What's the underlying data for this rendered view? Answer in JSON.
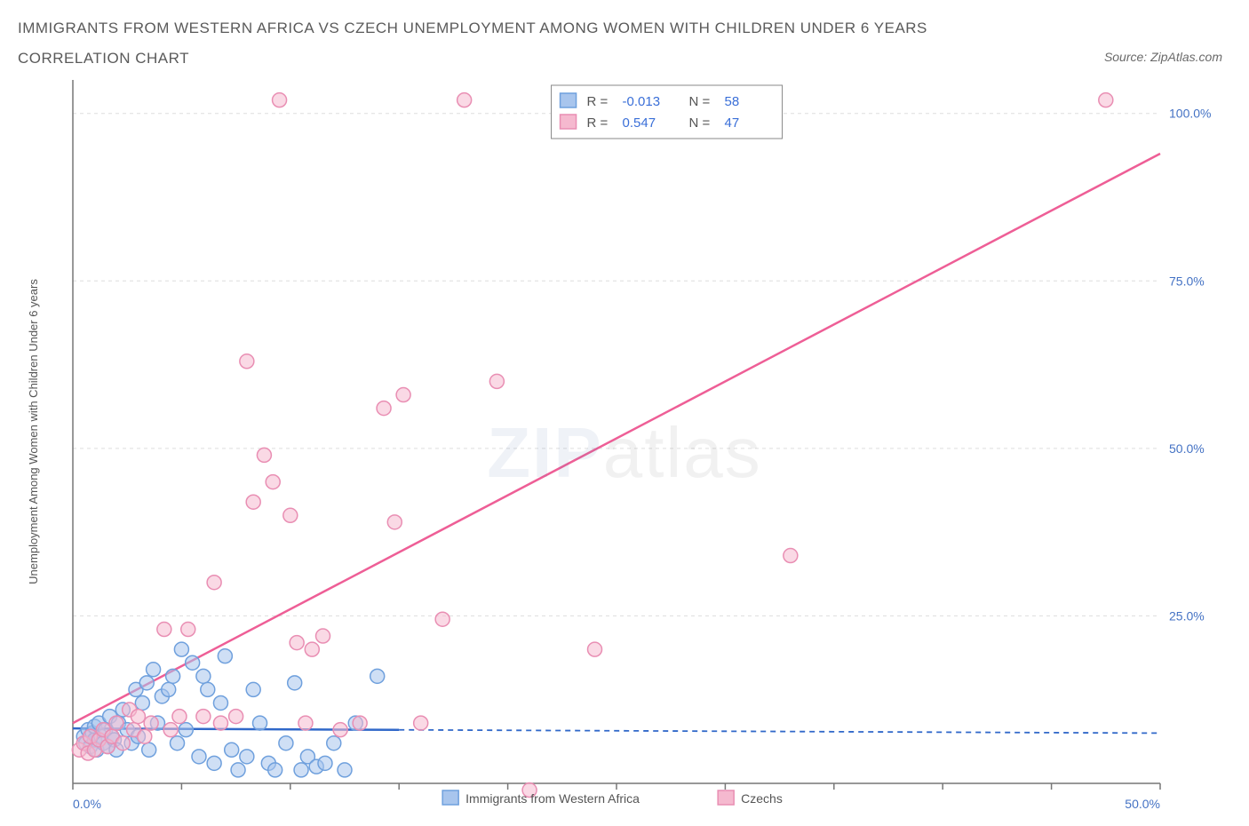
{
  "title_line1": "IMMIGRANTS FROM WESTERN AFRICA VS CZECH UNEMPLOYMENT AMONG WOMEN WITH CHILDREN UNDER 6 YEARS",
  "title_line2": "CORRELATION CHART",
  "source_text": "Source: ZipAtlas.com",
  "watermark_zip": "ZIP",
  "watermark_atlas": "atlas",
  "y_axis_label": "Unemployment Among Women with Children Under 6 years",
  "chart": {
    "type": "scatter",
    "background_color": "#ffffff",
    "grid_color": "#dddddd",
    "axis_color": "#777777",
    "tick_label_color": "#4472c4",
    "tick_fontsize": 14,
    "axis_label_fontsize": 13,
    "axis_label_color": "#555555",
    "xlim": [
      0,
      50
    ],
    "ylim": [
      0,
      105
    ],
    "x_ticks": [
      0,
      5,
      10,
      15,
      20,
      25,
      30,
      35,
      40,
      45,
      50
    ],
    "x_tick_labels": {
      "0": "0.0%",
      "50": "50.0%"
    },
    "y_ticks": [
      25,
      50,
      75,
      100
    ],
    "y_tick_labels": {
      "25": "25.0%",
      "50": "50.0%",
      "75": "75.0%",
      "100": "100.0%"
    },
    "marker_radius": 8,
    "marker_stroke_width": 1.5,
    "trend_line_width": 2.5,
    "series": [
      {
        "name": "Immigrants from Western Africa",
        "fill": "#a8c5ed",
        "stroke": "#6fa0dd",
        "fill_opacity": 0.55,
        "trend_color": "#3068c9",
        "trend_dash_after_x": 15,
        "trend_y_at_0": 8.2,
        "trend_y_at_50": 7.5,
        "points": [
          [
            0.5,
            7
          ],
          [
            0.6,
            6
          ],
          [
            0.7,
            8
          ],
          [
            0.8,
            5.5
          ],
          [
            0.9,
            7.5
          ],
          [
            1.0,
            6.5
          ],
          [
            1.0,
            8.5
          ],
          [
            1.1,
            5
          ],
          [
            1.2,
            9
          ],
          [
            1.3,
            7
          ],
          [
            1.4,
            6
          ],
          [
            1.5,
            8
          ],
          [
            1.6,
            5.5
          ],
          [
            1.7,
            10
          ],
          [
            1.8,
            7
          ],
          [
            1.9,
            6.5
          ],
          [
            2.0,
            5
          ],
          [
            2.1,
            9
          ],
          [
            2.3,
            11
          ],
          [
            2.5,
            8
          ],
          [
            2.7,
            6
          ],
          [
            2.9,
            14
          ],
          [
            3.0,
            7
          ],
          [
            3.2,
            12
          ],
          [
            3.4,
            15
          ],
          [
            3.5,
            5
          ],
          [
            3.7,
            17
          ],
          [
            3.9,
            9
          ],
          [
            4.1,
            13
          ],
          [
            4.4,
            14
          ],
          [
            4.6,
            16
          ],
          [
            4.8,
            6
          ],
          [
            5.0,
            20
          ],
          [
            5.2,
            8
          ],
          [
            5.5,
            18
          ],
          [
            5.8,
            4
          ],
          [
            6.0,
            16
          ],
          [
            6.2,
            14
          ],
          [
            6.5,
            3
          ],
          [
            6.8,
            12
          ],
          [
            7.0,
            19
          ],
          [
            7.3,
            5
          ],
          [
            7.6,
            2
          ],
          [
            8.0,
            4
          ],
          [
            8.3,
            14
          ],
          [
            8.6,
            9
          ],
          [
            9.0,
            3
          ],
          [
            9.3,
            2
          ],
          [
            9.8,
            6
          ],
          [
            10.2,
            15
          ],
          [
            10.5,
            2
          ],
          [
            10.8,
            4
          ],
          [
            11.2,
            2.5
          ],
          [
            11.6,
            3
          ],
          [
            12.0,
            6
          ],
          [
            12.5,
            2
          ],
          [
            13.0,
            9
          ],
          [
            14.0,
            16
          ]
        ]
      },
      {
        "name": "Czechs",
        "fill": "#f5b9cf",
        "stroke": "#e98eb3",
        "fill_opacity": 0.55,
        "trend_color": "#ee5e96",
        "trend_dash_after_x": 50,
        "trend_y_at_0": 9,
        "trend_y_at_50": 94,
        "points": [
          [
            0.3,
            5
          ],
          [
            0.5,
            6
          ],
          [
            0.7,
            4.5
          ],
          [
            0.8,
            7
          ],
          [
            1.0,
            5
          ],
          [
            1.2,
            6.5
          ],
          [
            1.4,
            8
          ],
          [
            1.6,
            5.5
          ],
          [
            1.8,
            7
          ],
          [
            2.0,
            9
          ],
          [
            2.3,
            6
          ],
          [
            2.6,
            11
          ],
          [
            2.8,
            8
          ],
          [
            3.0,
            10
          ],
          [
            3.3,
            7
          ],
          [
            3.6,
            9
          ],
          [
            4.2,
            23
          ],
          [
            4.5,
            8
          ],
          [
            4.9,
            10
          ],
          [
            5.3,
            23
          ],
          [
            6.0,
            10
          ],
          [
            6.5,
            30
          ],
          [
            6.8,
            9
          ],
          [
            7.5,
            10
          ],
          [
            8.0,
            63
          ],
          [
            8.3,
            42
          ],
          [
            8.8,
            49
          ],
          [
            9.2,
            45
          ],
          [
            9.5,
            102
          ],
          [
            10.0,
            40
          ],
          [
            10.3,
            21
          ],
          [
            10.7,
            9
          ],
          [
            11.0,
            20
          ],
          [
            11.5,
            22
          ],
          [
            12.3,
            8
          ],
          [
            13.2,
            9
          ],
          [
            14.3,
            56
          ],
          [
            14.8,
            39
          ],
          [
            15.2,
            58
          ],
          [
            16.0,
            9
          ],
          [
            17.0,
            24.5
          ],
          [
            18.0,
            102
          ],
          [
            19.5,
            60
          ],
          [
            21.0,
            -1
          ],
          [
            24.0,
            20
          ],
          [
            33.0,
            34
          ],
          [
            47.5,
            102
          ]
        ]
      }
    ],
    "stats_box": {
      "border_color": "#888888",
      "bg": "#ffffff",
      "value_color": "#3a6fd8",
      "label_color": "#555555",
      "fontsize": 15,
      "rows": [
        {
          "swatch_fill": "#a8c5ed",
          "swatch_stroke": "#6fa0dd",
          "r": "-0.013",
          "n": "58"
        },
        {
          "swatch_fill": "#f5b9cf",
          "swatch_stroke": "#e98eb3",
          "r": "0.547",
          "n": "47"
        }
      ]
    },
    "legend": {
      "fontsize": 14,
      "text_color": "#555555",
      "items": [
        {
          "swatch_fill": "#a8c5ed",
          "swatch_stroke": "#6fa0dd",
          "label": "Immigrants from Western Africa"
        },
        {
          "swatch_fill": "#f5b9cf",
          "swatch_stroke": "#e98eb3",
          "label": "Czechs"
        }
      ]
    }
  }
}
